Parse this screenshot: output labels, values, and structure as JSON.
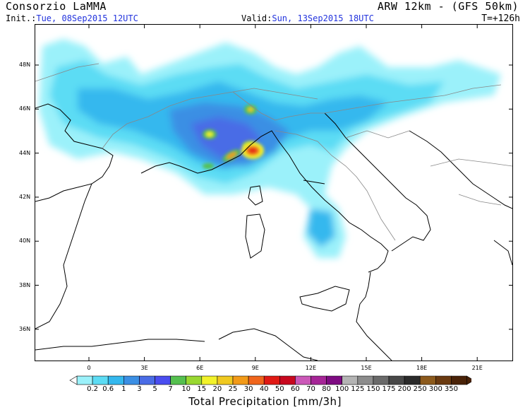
{
  "header": {
    "org": "Consorzio LaMMA",
    "model": "ARW 12km - (GFS 50km)",
    "init_label": "Init.:",
    "init_value": "Tue, 08Sep2015 12UTC",
    "valid_label": "Valid:",
    "valid_value": "Sun, 13Sep2015 18UTC",
    "lead_time": "T=+126h"
  },
  "map": {
    "lat_labels": [
      "48N",
      "46N",
      "44N",
      "42N",
      "40N",
      "38N",
      "36N"
    ],
    "lat_values": [
      48,
      46,
      44,
      42,
      40,
      38,
      36
    ],
    "lon_labels": [
      "0",
      "3E",
      "6E",
      "9E",
      "12E",
      "15E",
      "18E",
      "21E"
    ],
    "lon_values": [
      0,
      3,
      6,
      9,
      12,
      15,
      18,
      21
    ],
    "land_color": "#ffffff",
    "coast_color": "#000000",
    "border_color": "#888888"
  },
  "colorbar": {
    "title": "Total Precipitation [mm/3h]",
    "labels": [
      "0.2",
      "0.6",
      "1",
      "3",
      "5",
      "7",
      "10",
      "15",
      "20",
      "25",
      "30",
      "40",
      "50",
      "60",
      "70",
      "80",
      "100",
      "125",
      "150",
      "175",
      "200",
      "250",
      "300",
      "350"
    ],
    "colors": [
      "#9bf1fa",
      "#5cdcf4",
      "#34b8ee",
      "#3b8fe4",
      "#4a6ce6",
      "#4a4df0",
      "#55c04f",
      "#99d831",
      "#f2f22a",
      "#f0c920",
      "#f29a18",
      "#f0651c",
      "#e01914",
      "#c8081e",
      "#cb58b8",
      "#a62597",
      "#7e0b82",
      "#b4b4b4",
      "#8c8c8c",
      "#6a6a6a",
      "#484848",
      "#2b2b2b",
      "#8c5a1c",
      "#6a3a10",
      "#4a2308"
    ]
  }
}
